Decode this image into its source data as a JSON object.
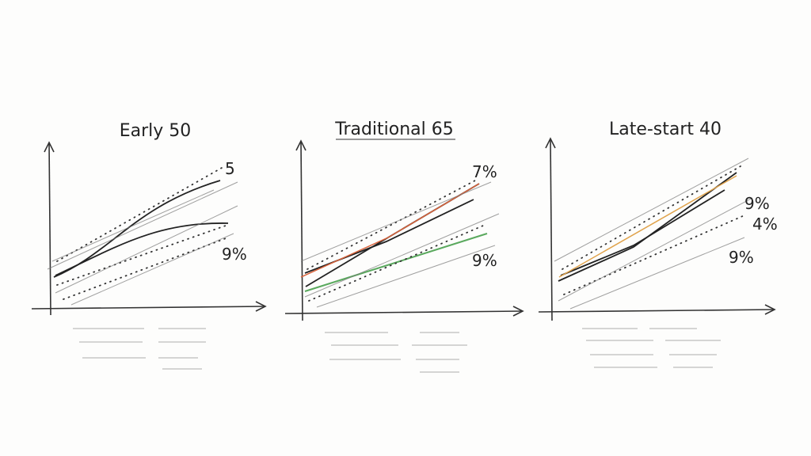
{
  "panels": [
    {
      "title": "Early 50",
      "labels": [
        "5",
        "9%"
      ]
    },
    {
      "title": "Traditional 65",
      "labels": [
        "7%",
        "9%"
      ]
    },
    {
      "title": "Late-start 40",
      "labels": [
        "9%",
        "4%",
        "9%"
      ]
    }
  ]
}
